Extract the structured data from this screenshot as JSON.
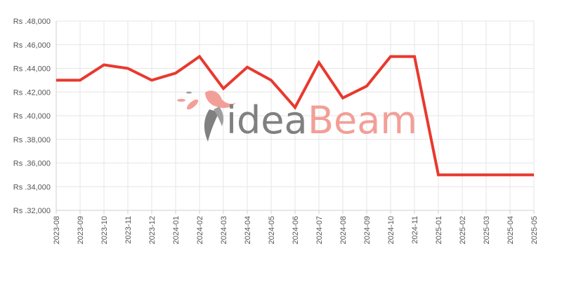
{
  "watermark": {
    "part1": "idea",
    "part2": "Beam"
  },
  "colors": {
    "line": "#e8392e",
    "grid": "#e6e6e6",
    "axis": "#cfcfcf",
    "watermark_gray": "#7a7a7a",
    "watermark_pink": "#f29a92"
  },
  "chart_data": {
    "type": "line",
    "title": "",
    "xlabel": "",
    "ylabel": "",
    "x": [
      "2023-08",
      "2023-09",
      "2023-10",
      "2023-11",
      "2023-12",
      "2024-01",
      "2024-02",
      "2024-03",
      "2024-04",
      "2024-05",
      "2024-06",
      "2024-07",
      "2024-08",
      "2024-09",
      "2024-10",
      "2024-11",
      "2025-01",
      "2025-02",
      "2025-03",
      "2025-04",
      "2025-05"
    ],
    "series": [
      {
        "values": [
          42999,
          42999,
          44299,
          43999,
          42999,
          43599,
          44999,
          42299,
          44099,
          42999,
          40699,
          44499,
          41499,
          42499,
          44999,
          44999,
          34999,
          34999,
          34999,
          34999,
          34999
        ]
      }
    ],
    "ylim": [
      32000,
      48000
    ],
    "yticks": [
      32000,
      34000,
      36000,
      38000,
      40000,
      42000,
      44000,
      46000,
      48000
    ],
    "ytick_labels": [
      "Rs .32,000",
      "Rs .34,000",
      "Rs .36,000",
      "Rs .38,000",
      "Rs .40,000",
      "Rs .42,000",
      "Rs .44,000",
      "Rs .46,000",
      "Rs .48,000"
    ],
    "grid": true,
    "legend": "none"
  }
}
